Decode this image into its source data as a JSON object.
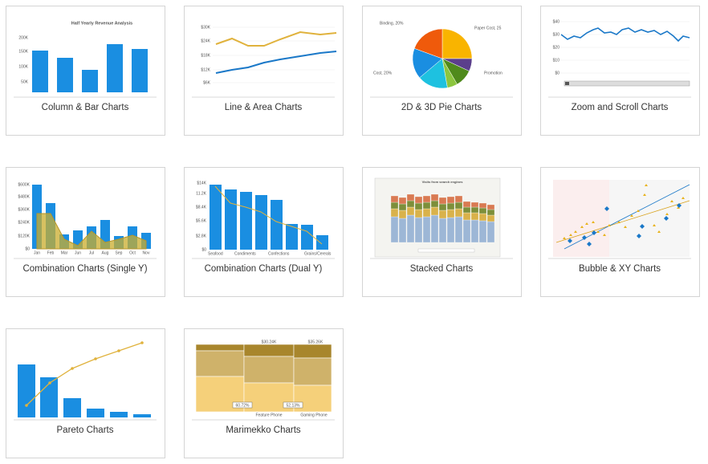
{
  "cards": [
    {
      "caption": "Column & Bar Charts",
      "texts": [
        "Half Yearly Revenue Analysis",
        "200K",
        "150K",
        "100K",
        "50K"
      ]
    },
    {
      "caption": "Line & Area Charts",
      "texts": [
        "$30K",
        "$24K",
        "$18K",
        "$12K",
        "$6K"
      ]
    },
    {
      "caption": "2D & 3D Pie Charts",
      "texts": [
        "Binding, 20%",
        "Paper Cost, 25",
        "Promotion",
        "Cost, 20%"
      ]
    },
    {
      "caption": "Zoom and Scroll Charts",
      "texts": [
        "$40",
        "$30",
        "$20",
        "$10",
        "$0"
      ]
    },
    {
      "caption": "Combination Charts (Single Y)",
      "texts": [
        "$600K",
        "$480K",
        "$360K",
        "$240K",
        "$120K",
        "$0",
        "Jan",
        "Feb",
        "Mar",
        "Jun",
        "Jul",
        "Aug",
        "Sep",
        "Oct",
        "Nov"
      ]
    },
    {
      "caption": "Combination Charts (Dual Y)",
      "texts": [
        "$14K",
        "11.2K",
        "$8.4K",
        "$5.6K",
        "$2.8K",
        "$0",
        "Seafood",
        "Condiments",
        "Confections",
        "Grains/Cereals"
      ]
    },
    {
      "caption": "Stacked Charts",
      "texts": [
        "Visits from search engines"
      ]
    },
    {
      "caption": "Bubble & XY Charts"
    },
    {
      "caption": "Pareto Charts"
    },
    {
      "caption": "Marimekko Charts",
      "texts": [
        "$30.24K",
        "$35.26K",
        "60.72%",
        "52.13%",
        "Feature Phone",
        "Gaming Phone"
      ]
    }
  ]
}
